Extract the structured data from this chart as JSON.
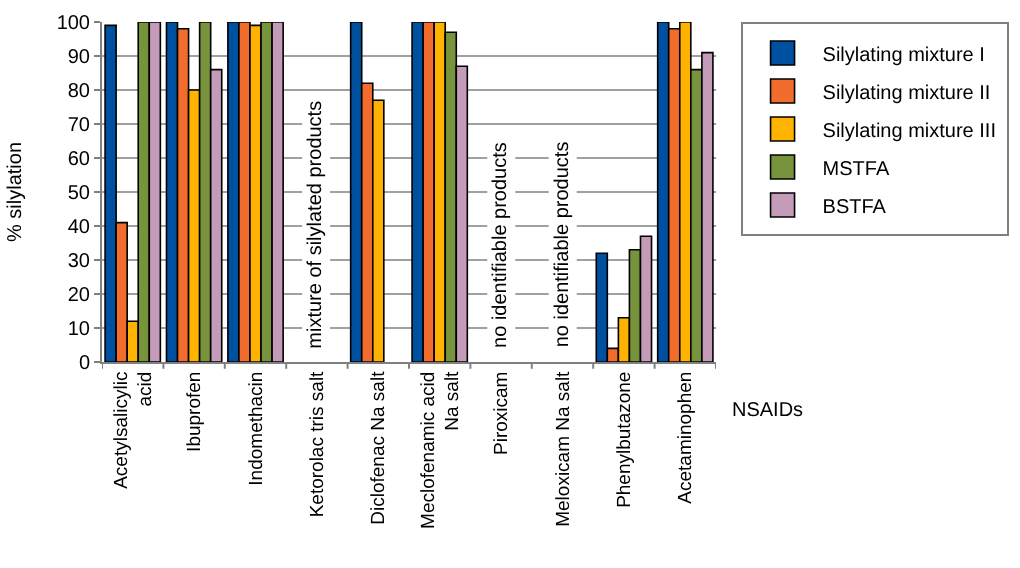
{
  "chart_data": {
    "type": "bar",
    "ylabel": "% silylation",
    "xlabel": "NSAIDs",
    "categories": [
      "Acetylsalicylic\nacid",
      "Ibuprofen",
      "Indomethacin",
      "Ketorolac tris salt",
      "Diclofenac Na salt",
      "Meclofenamic acid\nNa salt",
      "Piroxicam",
      "Meloxicam Na salt",
      "Phenylbutazone",
      "Acetaminophen"
    ],
    "series": [
      {
        "name": "Silylating mixture I",
        "color": "#0050a0",
        "values": [
          99,
          100,
          100,
          null,
          100,
          100,
          null,
          null,
          32,
          100
        ]
      },
      {
        "name": "Silylating mixture II",
        "color": "#f26d2d",
        "values": [
          41,
          98,
          100,
          null,
          82,
          100,
          null,
          null,
          4,
          98
        ]
      },
      {
        "name": "Silylating mixture III",
        "color": "#ffb300",
        "values": [
          12,
          80,
          99,
          null,
          77,
          100,
          null,
          null,
          13,
          100
        ]
      },
      {
        "name": "MSTFA",
        "color": "#77933c",
        "values": [
          100,
          100,
          100,
          null,
          null,
          97,
          null,
          null,
          33,
          86
        ]
      },
      {
        "name": "BSTFA",
        "color": "#c49bb9",
        "values": [
          100,
          86,
          100,
          null,
          null,
          87,
          null,
          null,
          37,
          91
        ]
      }
    ],
    "ylim": [
      0,
      100
    ],
    "yticks": [
      0,
      10,
      20,
      30,
      40,
      50,
      60,
      70,
      80,
      90,
      100
    ],
    "grid": "y",
    "legend": "top right",
    "annotations": [
      "mixture of silylated products",
      "no identifiable products",
      "no identifiable products"
    ]
  }
}
